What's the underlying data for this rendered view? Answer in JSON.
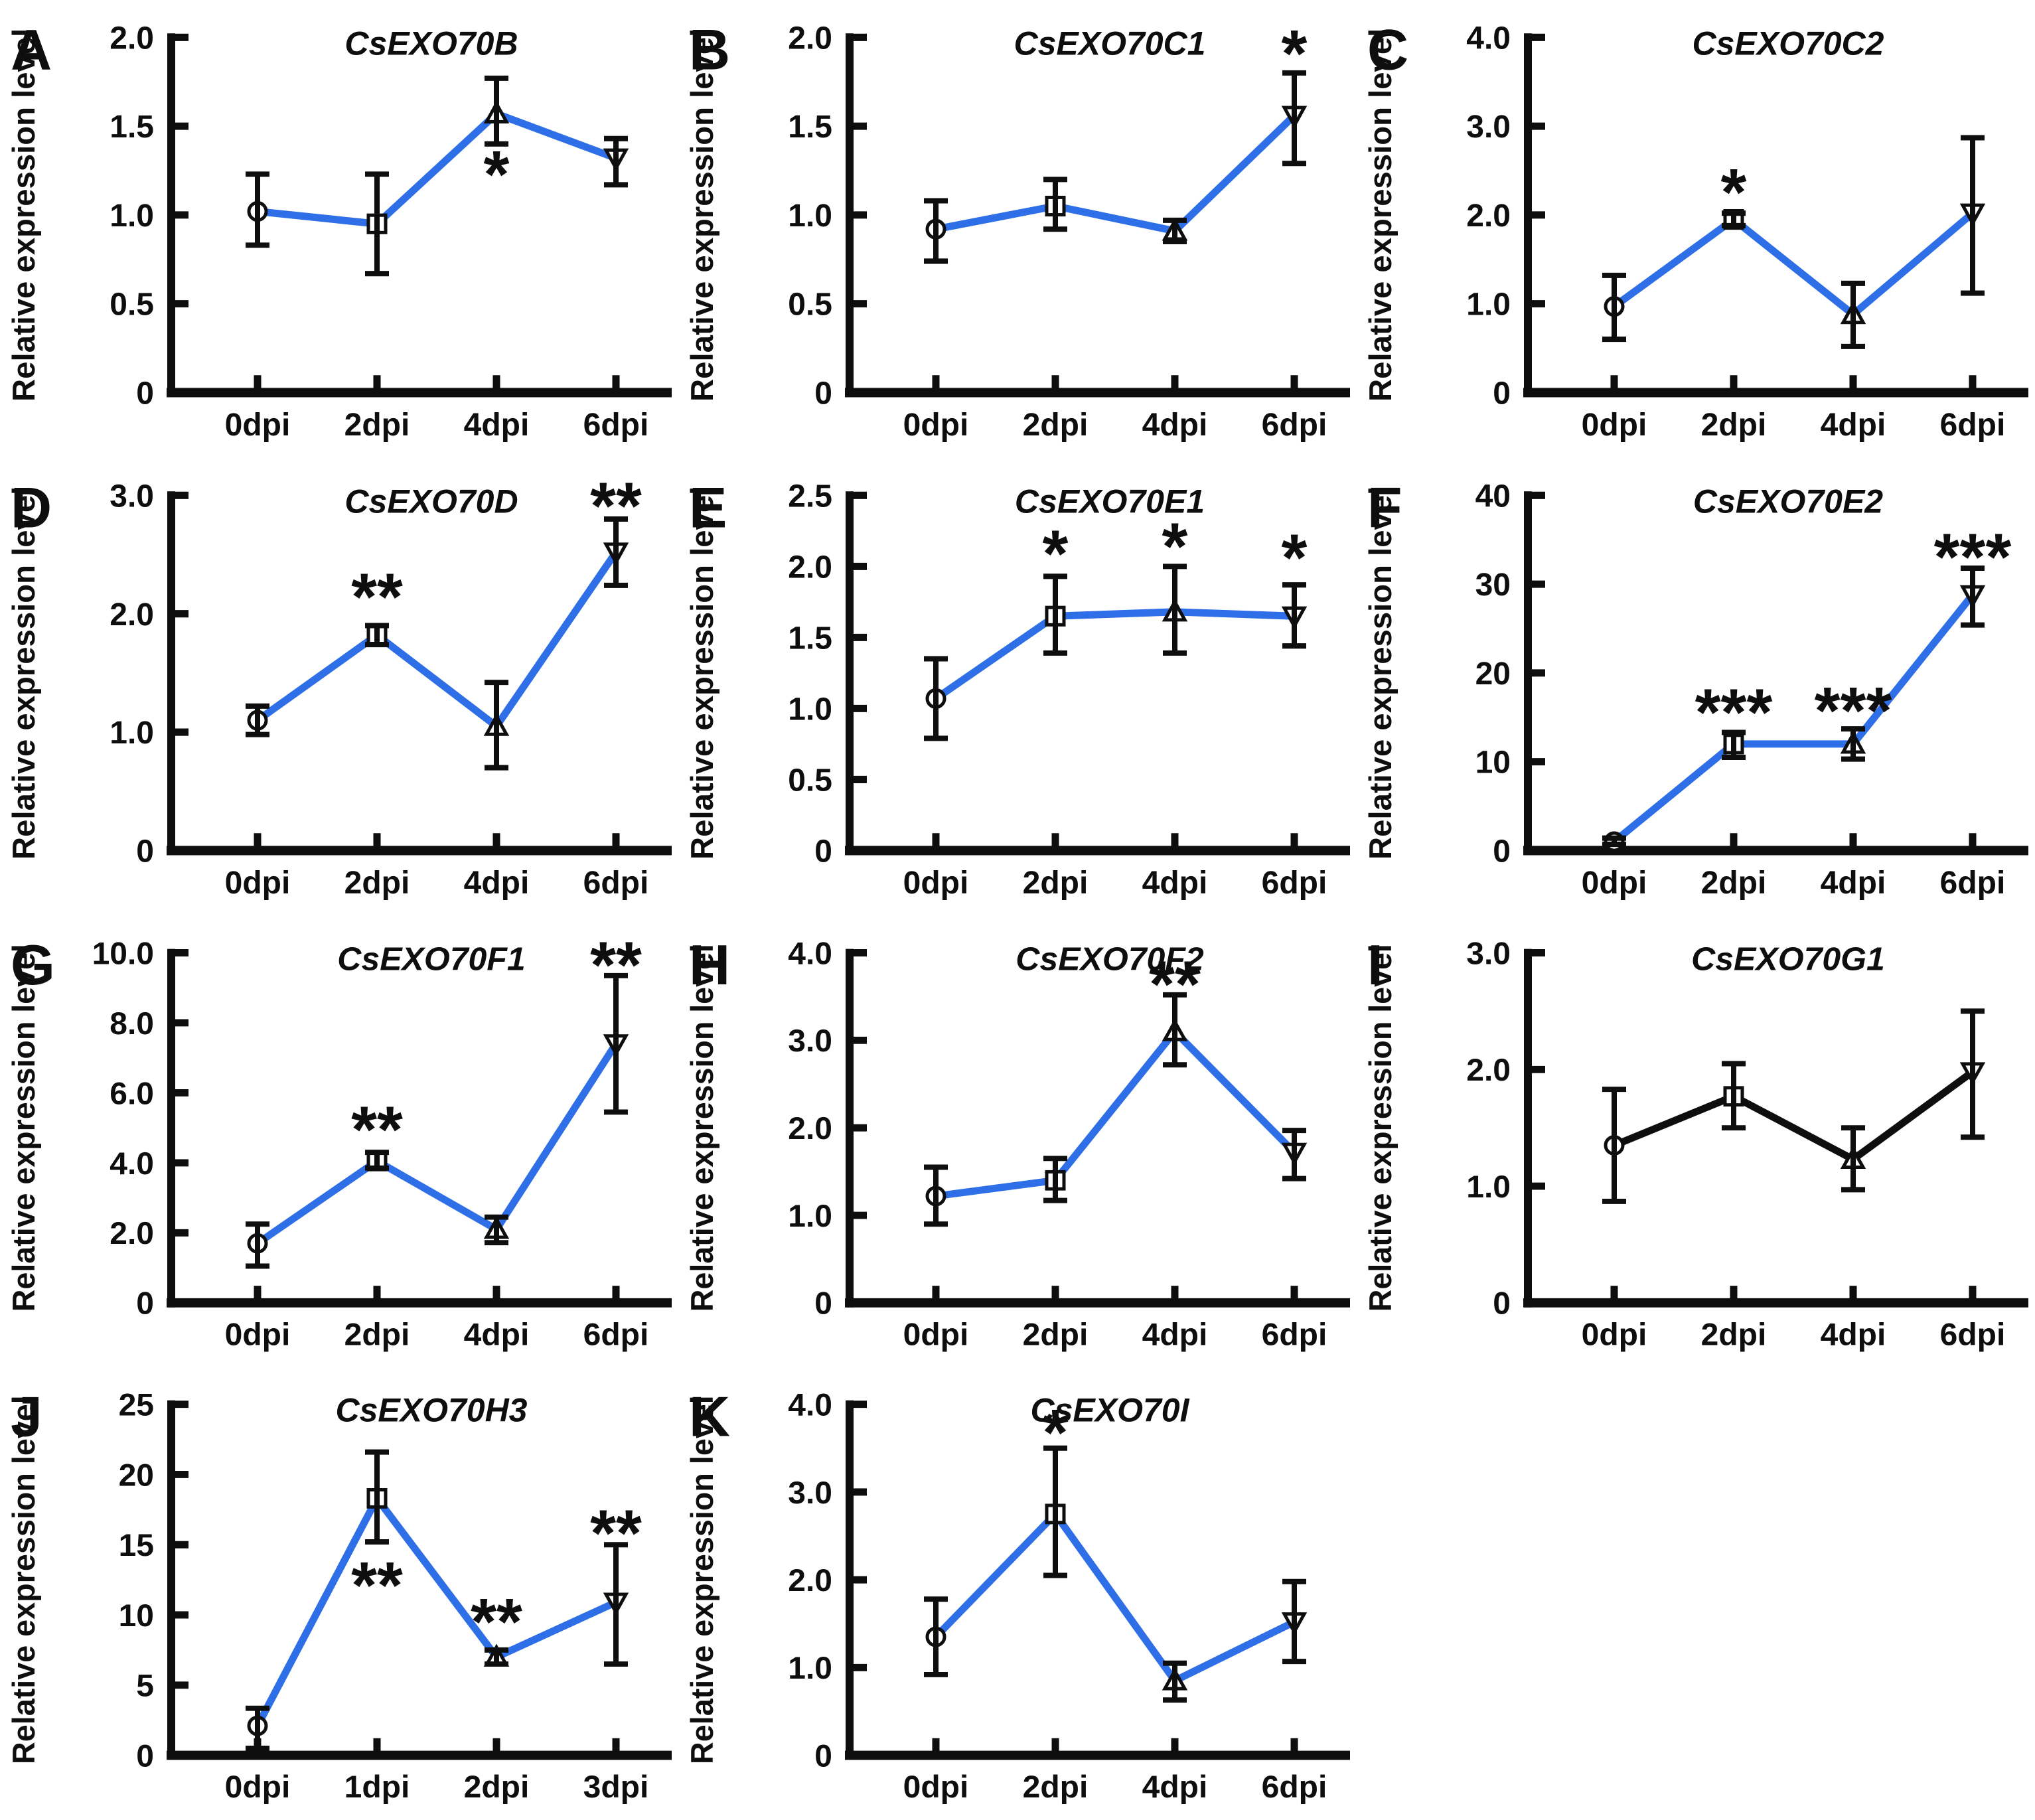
{
  "figure": {
    "background": "#ffffff",
    "colors": {
      "line_blue": "#2e6fe7",
      "line_black": "#0e0e0e",
      "error_bar": "#0e0e0e",
      "text": "#0e0e0e",
      "marker_fill": "#ffffff"
    },
    "marker_shapes": [
      "circle",
      "square",
      "triangle-up",
      "triangle-down"
    ],
    "ylabel": "Relative expression level"
  },
  "chart_data": [
    {
      "panel": "A",
      "type": "line",
      "title": "CsEXO70B",
      "ylabel": "Relative expression level",
      "xlabel": "",
      "categories": [
        "0dpi",
        "2dpi",
        "4dpi",
        "6dpi"
      ],
      "values": [
        1.02,
        0.95,
        1.57,
        1.32
      ],
      "err_low": [
        0.83,
        0.67,
        1.4,
        1.17
      ],
      "err_high": [
        1.23,
        1.23,
        1.77,
        1.43
      ],
      "ylim": [
        0,
        2.0
      ],
      "yticks": [
        {
          "label": "0",
          "value": 0
        },
        {
          "label": "0.5",
          "value": 0.5
        },
        {
          "label": "1.0",
          "value": 1.0
        },
        {
          "label": "1.5",
          "value": 1.5
        },
        {
          "label": "2.0",
          "value": 2.0
        }
      ],
      "line_color": "#2e6fe7",
      "annotations": [
        {
          "x_index": 2,
          "text": "*",
          "y": 1.1
        }
      ]
    },
    {
      "panel": "B",
      "type": "line",
      "title": "CsEXO70C1",
      "ylabel": "Relative expression level",
      "xlabel": "",
      "categories": [
        "0dpi",
        "2dpi",
        "4dpi",
        "6dpi"
      ],
      "values": [
        0.92,
        1.05,
        0.91,
        1.56
      ],
      "err_low": [
        0.74,
        0.92,
        0.85,
        1.29
      ],
      "err_high": [
        1.08,
        1.2,
        0.97,
        1.8
      ],
      "ylim": [
        0,
        2.0
      ],
      "yticks": [
        {
          "label": "0",
          "value": 0
        },
        {
          "label": "0.5",
          "value": 0.5
        },
        {
          "label": "1.0",
          "value": 1.0
        },
        {
          "label": "1.5",
          "value": 1.5
        },
        {
          "label": "2.0",
          "value": 2.0
        }
      ],
      "line_color": "#2e6fe7",
      "annotations": [
        {
          "x_index": 3,
          "text": "*",
          "y": 1.78
        }
      ]
    },
    {
      "panel": "C",
      "type": "line",
      "title": "CsEXO70C2",
      "ylabel": "Relative expression level",
      "xlabel": "",
      "categories": [
        "0dpi",
        "2dpi",
        "4dpi",
        "6dpi"
      ],
      "values": [
        0.97,
        1.95,
        0.88,
        2.02
      ],
      "err_low": [
        0.6,
        1.88,
        0.52,
        1.12
      ],
      "err_high": [
        1.32,
        2.02,
        1.23,
        2.87
      ],
      "ylim": [
        0,
        4.0
      ],
      "yticks": [
        {
          "label": "0",
          "value": 0
        },
        {
          "label": "1.0",
          "value": 1.0
        },
        {
          "label": "2.0",
          "value": 2.0
        },
        {
          "label": "3.0",
          "value": 3.0
        },
        {
          "label": "4.0",
          "value": 4.0
        }
      ],
      "line_color": "#2e6fe7",
      "annotations": [
        {
          "x_index": 1,
          "text": "*",
          "y": 2.0
        }
      ]
    },
    {
      "panel": "D",
      "type": "line",
      "title": "CsEXO70D",
      "ylabel": "Relative expression level",
      "xlabel": "",
      "categories": [
        "0dpi",
        "2dpi",
        "4dpi",
        "6dpi"
      ],
      "values": [
        1.1,
        1.82,
        1.05,
        2.52
      ],
      "err_low": [
        0.98,
        1.74,
        0.7,
        2.24
      ],
      "err_high": [
        1.22,
        1.9,
        1.42,
        2.8
      ],
      "ylim": [
        0,
        3.0
      ],
      "yticks": [
        {
          "label": "0",
          "value": 0
        },
        {
          "label": "1.0",
          "value": 1.0
        },
        {
          "label": "2.0",
          "value": 2.0
        },
        {
          "label": "3.0",
          "value": 3.0
        }
      ],
      "line_color": "#2e6fe7",
      "annotations": [
        {
          "x_index": 1,
          "text": "**",
          "y": 1.95
        },
        {
          "x_index": 3,
          "text": "**",
          "y": 2.72
        }
      ]
    },
    {
      "panel": "E",
      "type": "line",
      "title": "CsEXO70E1",
      "ylabel": "Relative expression level",
      "xlabel": "",
      "categories": [
        "0dpi",
        "2dpi",
        "4dpi",
        "6dpi"
      ],
      "values": [
        1.07,
        1.65,
        1.68,
        1.65
      ],
      "err_low": [
        0.79,
        1.39,
        1.39,
        1.44
      ],
      "err_high": [
        1.35,
        1.93,
        2.0,
        1.87
      ],
      "ylim": [
        0,
        2.5
      ],
      "yticks": [
        {
          "label": "0",
          "value": 0
        },
        {
          "label": "0.5",
          "value": 0.5
        },
        {
          "label": "1.0",
          "value": 1.0
        },
        {
          "label": "1.5",
          "value": 1.5
        },
        {
          "label": "2.0",
          "value": 2.0
        },
        {
          "label": "2.5",
          "value": 2.5
        }
      ],
      "line_color": "#2e6fe7",
      "annotations": [
        {
          "x_index": 1,
          "text": "*",
          "y": 1.93
        },
        {
          "x_index": 2,
          "text": "*",
          "y": 1.98
        },
        {
          "x_index": 3,
          "text": "*",
          "y": 1.9
        }
      ]
    },
    {
      "panel": "F",
      "type": "line",
      "title": "CsEXO70E2",
      "ylabel": "Relative expression level",
      "xlabel": "",
      "categories": [
        "0dpi",
        "2dpi",
        "4dpi",
        "6dpi"
      ],
      "values": [
        1.0,
        12.0,
        12.0,
        28.8
      ],
      "err_low": [
        0.7,
        10.5,
        10.3,
        25.4
      ],
      "err_high": [
        1.4,
        13.3,
        13.7,
        31.8
      ],
      "ylim": [
        0,
        40
      ],
      "yticks": [
        {
          "label": "0",
          "value": 0
        },
        {
          "label": "10",
          "value": 10
        },
        {
          "label": "20",
          "value": 20
        },
        {
          "label": "30",
          "value": 30
        },
        {
          "label": "40",
          "value": 40
        }
      ],
      "line_color": "#2e6fe7",
      "annotations": [
        {
          "x_index": 1,
          "text": "***",
          "y": 13.0
        },
        {
          "x_index": 2,
          "text": "***",
          "y": 13.2
        },
        {
          "x_index": 3,
          "text": "***",
          "y": 30.5
        }
      ]
    },
    {
      "panel": "G",
      "type": "line",
      "title": "CsEXO70F1",
      "ylabel": "Relative expression level",
      "xlabel": "",
      "categories": [
        "0dpi",
        "2dpi",
        "4dpi",
        "6dpi"
      ],
      "values": [
        1.7,
        4.05,
        2.1,
        7.4
      ],
      "err_low": [
        1.05,
        3.85,
        1.72,
        5.45
      ],
      "err_high": [
        2.25,
        4.3,
        2.45,
        9.35
      ],
      "ylim": [
        0,
        10.0
      ],
      "yticks": [
        {
          "label": "0",
          "value": 0
        },
        {
          "label": "2.0",
          "value": 2.0
        },
        {
          "label": "4.0",
          "value": 4.0
        },
        {
          "label": "6.0",
          "value": 6.0
        },
        {
          "label": "8.0",
          "value": 8.0
        },
        {
          "label": "10.0",
          "value": 10.0
        }
      ],
      "line_color": "#2e6fe7",
      "annotations": [
        {
          "x_index": 1,
          "text": "**",
          "y": 4.3
        },
        {
          "x_index": 3,
          "text": "**",
          "y": 9.0
        }
      ]
    },
    {
      "panel": "H",
      "type": "line",
      "title": "CsEXO70F2",
      "ylabel": "Relative expression level",
      "xlabel": "",
      "categories": [
        "0dpi",
        "2dpi",
        "4dpi",
        "6dpi"
      ],
      "values": [
        1.22,
        1.4,
        3.1,
        1.72
      ],
      "err_low": [
        0.9,
        1.17,
        2.72,
        1.42
      ],
      "err_high": [
        1.55,
        1.65,
        3.52,
        1.97
      ],
      "ylim": [
        0,
        4.0
      ],
      "yticks": [
        {
          "label": "0",
          "value": 0
        },
        {
          "label": "1.0",
          "value": 1.0
        },
        {
          "label": "2.0",
          "value": 2.0
        },
        {
          "label": "3.0",
          "value": 3.0
        },
        {
          "label": "4.0",
          "value": 4.0
        }
      ],
      "line_color": "#2e6fe7",
      "annotations": [
        {
          "x_index": 2,
          "text": "**",
          "y": 3.38
        }
      ]
    },
    {
      "panel": "I",
      "type": "line",
      "title": "CsEXO70G1",
      "ylabel": "Relative expression level",
      "xlabel": "",
      "categories": [
        "0dpi",
        "2dpi",
        "4dpi",
        "6dpi"
      ],
      "values": [
        1.35,
        1.77,
        1.23,
        1.98
      ],
      "err_low": [
        0.87,
        1.5,
        0.97,
        1.42
      ],
      "err_high": [
        1.83,
        2.05,
        1.5,
        2.5
      ],
      "ylim": [
        0,
        3.0
      ],
      "yticks": [
        {
          "label": "0",
          "value": 0
        },
        {
          "label": "1.0",
          "value": 1.0
        },
        {
          "label": "2.0",
          "value": 2.0
        },
        {
          "label": "3.0",
          "value": 3.0
        }
      ],
      "line_color": "#0e0e0e",
      "annotations": []
    },
    {
      "panel": "J",
      "type": "line",
      "title": "CsEXO70H3",
      "ylabel": "Relative expression level",
      "xlabel": "",
      "categories": [
        "0dpi",
        "1dpi",
        "2dpi",
        "3dpi"
      ],
      "values": [
        2.1,
        18.3,
        7.0,
        10.9
      ],
      "err_low": [
        0.5,
        15.2,
        6.5,
        6.5
      ],
      "err_high": [
        3.35,
        21.6,
        7.5,
        15.0
      ],
      "ylim": [
        0,
        25
      ],
      "yticks": [
        {
          "label": "0",
          "value": 0
        },
        {
          "label": "5",
          "value": 5
        },
        {
          "label": "10",
          "value": 10
        },
        {
          "label": "15",
          "value": 15
        },
        {
          "label": "20",
          "value": 20
        },
        {
          "label": "25",
          "value": 25
        }
      ],
      "line_color": "#2e6fe7",
      "annotations": [
        {
          "x_index": 1,
          "text": "**",
          "y": 10.5
        },
        {
          "x_index": 2,
          "text": "**",
          "y": 7.9
        },
        {
          "x_index": 3,
          "text": "**",
          "y": 14.2
        }
      ]
    },
    {
      "panel": "K",
      "type": "line",
      "title": "CsEXO70I",
      "ylabel": "Relative expression level",
      "xlabel": "",
      "categories": [
        "0dpi",
        "2dpi",
        "4dpi",
        "6dpi"
      ],
      "values": [
        1.35,
        2.75,
        0.85,
        1.52
      ],
      "err_low": [
        0.92,
        2.05,
        0.63,
        1.07
      ],
      "err_high": [
        1.78,
        3.5,
        1.05,
        1.98
      ],
      "ylim": [
        0,
        4.0
      ],
      "yticks": [
        {
          "label": "0",
          "value": 0
        },
        {
          "label": "1.0",
          "value": 1.0
        },
        {
          "label": "2.0",
          "value": 2.0
        },
        {
          "label": "3.0",
          "value": 3.0
        },
        {
          "label": "4.0",
          "value": 4.0
        }
      ],
      "line_color": "#2e6fe7",
      "annotations": [
        {
          "x_index": 1,
          "text": "*",
          "y": 3.42
        }
      ]
    }
  ]
}
